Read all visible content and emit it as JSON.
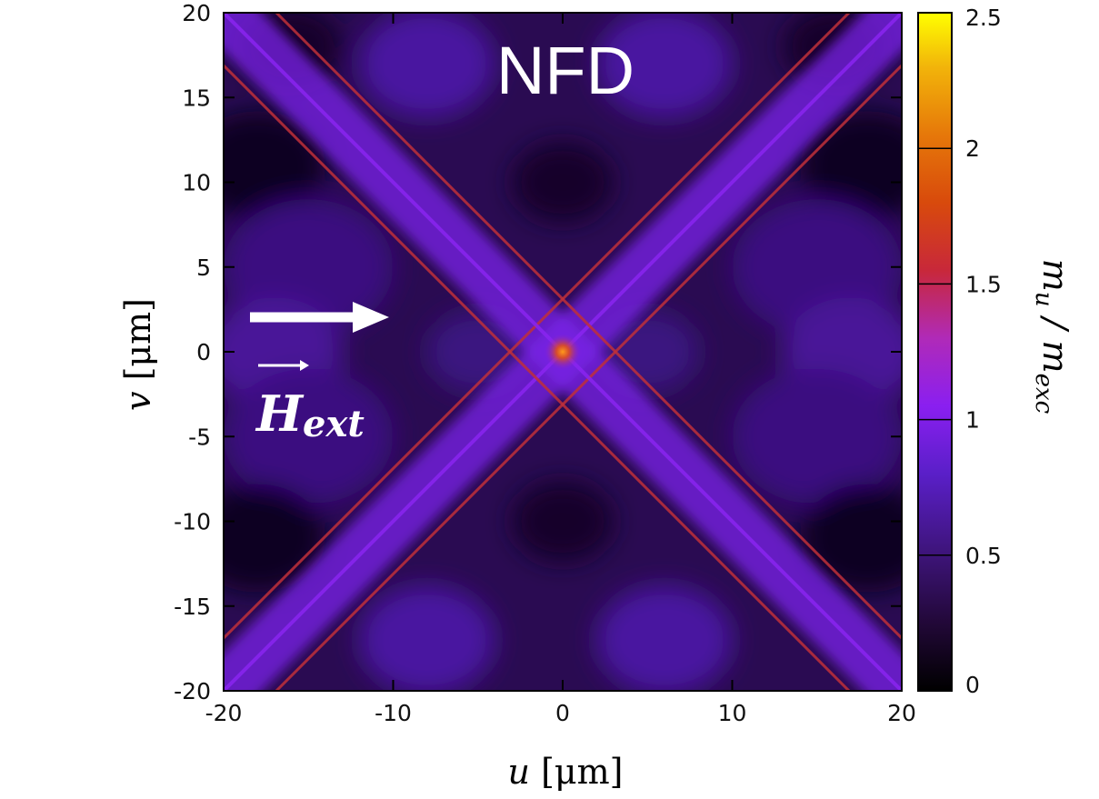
{
  "chart_data": {
    "type": "heatmap",
    "title": "NFD",
    "xlabel_var": "u",
    "xlabel_unit": "[μm]",
    "ylabel_var": "v",
    "ylabel_unit": "[μm]",
    "xlim": [
      -20,
      20
    ],
    "ylim": [
      -20,
      20
    ],
    "x_ticks": [
      -20,
      -10,
      0,
      10,
      20
    ],
    "y_ticks": [
      -20,
      -15,
      -10,
      -5,
      0,
      5,
      10,
      15,
      20
    ],
    "x_tick_labels": [
      "-20",
      "-10",
      "0",
      "10",
      "20"
    ],
    "y_tick_labels": [
      "-20",
      "-15",
      "-10",
      "-5",
      "0",
      "5",
      "10",
      "15",
      "20"
    ],
    "colorbar": {
      "label_num": "m",
      "label_num_sub": "u",
      "label_den": "m",
      "label_den_sub": "exc",
      "range": [
        0,
        2.5
      ],
      "ticks": [
        0,
        0.5,
        1,
        1.5,
        2,
        2.5
      ],
      "tick_labels": [
        "0",
        "0.5",
        "1",
        "1.5",
        "2",
        "2.5"
      ],
      "colors": [
        "#000000",
        "#2a0a4a",
        "#4a1a9a",
        "#7a22e0",
        "#9a22d8",
        "#c0304a",
        "#d63a10",
        "#e8720a",
        "#f2b80a",
        "#ffff00"
      ]
    },
    "annotation": {
      "arrow_direction": "right",
      "label_main": "H",
      "label_sub": "ext"
    },
    "features": {
      "diagonal_bands": true,
      "peak_at": [
        0,
        0
      ],
      "peak_value": 1.9
    }
  }
}
